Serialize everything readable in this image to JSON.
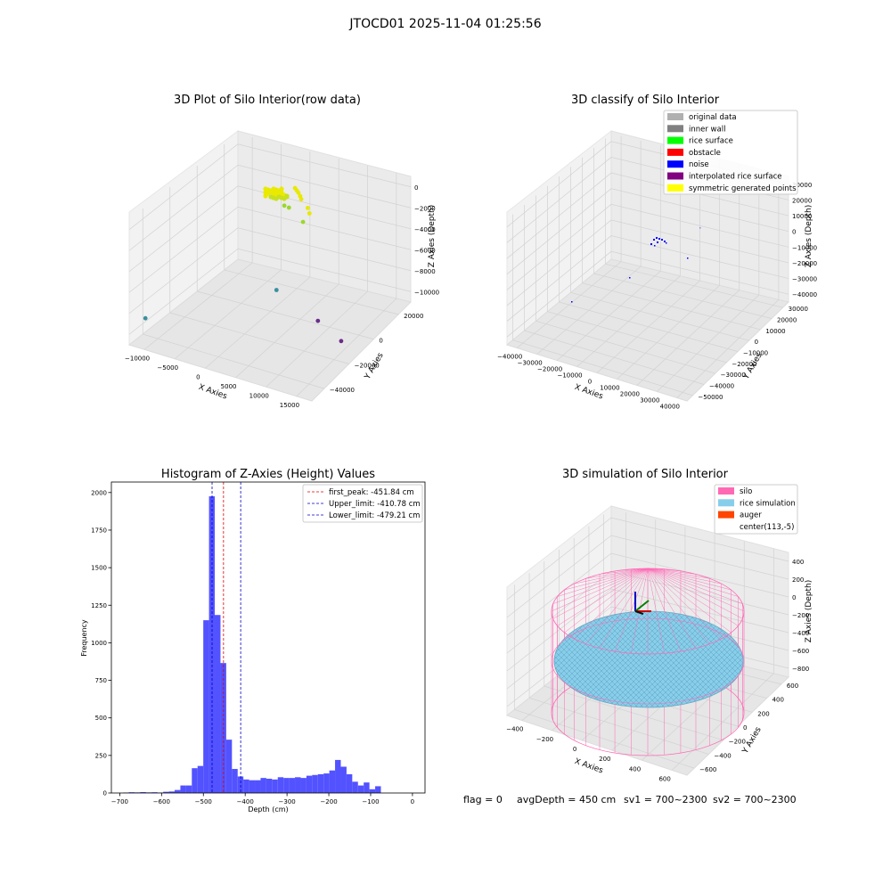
{
  "suptitle": "JTOCD01 2025-11-04 01:25:56",
  "footer": {
    "flag": "flag = 0",
    "avg_depth": "avgDepth = 450 cm",
    "sv1": "sv1 = 700~2300",
    "sv2": "sv2 = 700~2300"
  },
  "chart_data": [
    {
      "id": "raw3d",
      "type": "scatter",
      "title": "3D Plot of Silo Interior(row data)",
      "xlabel": "X Axies",
      "ylabel": "Y Axies",
      "zlabel": "Z Axies (Depth)",
      "x_ticks": [
        "−10000",
        "−5000",
        "0",
        "5000",
        "10000",
        "15000"
      ],
      "y_ticks": [
        "−40000",
        "−20000",
        "0",
        "20000"
      ],
      "z_ticks": [
        "−10000",
        "−8000",
        "−6000",
        "−4000",
        "−2000",
        "0"
      ],
      "points": [
        {
          "x": -1000,
          "y": 17000,
          "z": -1100
        },
        {
          "x": -600,
          "y": 16500,
          "z": -1200
        },
        {
          "x": -200,
          "y": 16000,
          "z": -1300
        },
        {
          "x": 200,
          "y": 15500,
          "z": -1500
        },
        {
          "x": 500,
          "y": 15000,
          "z": -1700
        },
        {
          "x": 1800,
          "y": 14000,
          "z": -2200
        },
        {
          "x": 2200,
          "y": 13500,
          "z": -2600
        },
        {
          "x": -3000,
          "y": 18000,
          "z": -3300
        },
        {
          "x": -2000,
          "y": 17000,
          "z": -3200
        },
        {
          "x": 1500,
          "y": 12000,
          "z": -3400
        },
        {
          "x": 0,
          "y": 0,
          "z": -9000
        },
        {
          "x": 8000,
          "y": -5000,
          "z": -10000
        },
        {
          "x": 13000,
          "y": -10000,
          "z": -10500
        },
        {
          "x": -12000,
          "y": -40000,
          "z": -9500
        }
      ]
    },
    {
      "id": "classify3d",
      "type": "scatter",
      "title": "3D classify of Silo Interior",
      "xlabel": "X Axies",
      "ylabel": "Y Axies",
      "zlabel": "Z Axies (Depth)",
      "x_ticks": [
        "−40000",
        "−30000",
        "−20000",
        "−10000",
        "0",
        "10000",
        "20000",
        "30000",
        "40000"
      ],
      "y_ticks": [
        "−50000",
        "−40000",
        "−30000",
        "−20000",
        "−10000",
        "0",
        "10000",
        "20000",
        "30000"
      ],
      "z_ticks": [
        "−40000",
        "−30000",
        "−20000",
        "−10000",
        "0",
        "10000",
        "20000",
        "30000"
      ],
      "legend": [
        {
          "label": "original data",
          "color": "#b0b0b0"
        },
        {
          "label": "inner wall",
          "color": "#808080"
        },
        {
          "label": "rice surface",
          "color": "#00ff00"
        },
        {
          "label": "obstacle",
          "color": "#ff0000"
        },
        {
          "label": "noise",
          "color": "#0000ff"
        },
        {
          "label": "interpolated rice surface",
          "color": "#800080"
        },
        {
          "label": "symmetric generated points",
          "color": "#ffff00"
        }
      ]
    },
    {
      "id": "histogram",
      "type": "bar",
      "title": "Histogram of Z-Axies (Height) Values",
      "xlabel": "Depth (cm)",
      "ylabel": "Frequency",
      "xlim": [
        -720,
        30
      ],
      "ylim": [
        0,
        2070
      ],
      "x_ticks": [
        -700,
        -600,
        -500,
        -400,
        -300,
        -200,
        -100,
        0
      ],
      "y_ticks": [
        0,
        250,
        500,
        750,
        1000,
        1250,
        1500,
        1750,
        2000
      ],
      "bin_start": -692,
      "bin_width": 13.7,
      "values": [
        3,
        5,
        4,
        6,
        4,
        5,
        3,
        8,
        10,
        20,
        50,
        50,
        165,
        180,
        1150,
        1975,
        1185,
        865,
        355,
        160,
        110,
        90,
        85,
        85,
        100,
        95,
        90,
        105,
        100,
        100,
        105,
        100,
        115,
        120,
        125,
        130,
        150,
        220,
        175,
        125,
        75,
        50,
        70,
        25,
        45
      ],
      "bar_color": "#5252ff",
      "vlines": [
        {
          "label": "first_peak: -451.84 cm",
          "x": -451.84,
          "color": "#e00000"
        },
        {
          "label": "Upper_limit: -410.78 cm",
          "x": -410.78,
          "color": "#0000c8"
        },
        {
          "label": "Lower_limit: -479.21 cm",
          "x": -479.21,
          "color": "#0000c8"
        }
      ]
    },
    {
      "id": "simulation3d",
      "type": "scatter",
      "title": "3D simulation of Silo Interior",
      "xlabel": "X Axies",
      "ylabel": "Y Axies",
      "zlabel": "Z Axies (Depth)",
      "x_ticks": [
        "−400",
        "−200",
        "0",
        "200",
        "400",
        "600"
      ],
      "y_ticks": [
        "−600",
        "−400",
        "−200",
        "0",
        "200",
        "400",
        "600"
      ],
      "z_ticks": [
        "−800",
        "−600",
        "−400",
        "−200",
        "0",
        "200",
        "400"
      ],
      "legend": [
        {
          "label": "silo",
          "color": "#ff69b4"
        },
        {
          "label": "rice simulation",
          "color": "#87ceeb"
        },
        {
          "label": "auger",
          "color": "#ff4500"
        },
        {
          "label": "center(113,-5)",
          "color": ""
        }
      ]
    }
  ]
}
